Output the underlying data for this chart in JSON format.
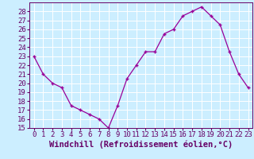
{
  "x": [
    0,
    1,
    2,
    3,
    4,
    5,
    6,
    7,
    8,
    9,
    10,
    11,
    12,
    13,
    14,
    15,
    16,
    17,
    18,
    19,
    20,
    21,
    22,
    23
  ],
  "y": [
    23,
    21,
    20,
    19.5,
    17.5,
    17,
    16.5,
    16,
    15,
    17.5,
    20.5,
    22,
    23.5,
    23.5,
    25.5,
    26,
    27.5,
    28,
    28.5,
    27.5,
    26.5,
    23.5,
    21,
    19.5
  ],
  "line_color": "#990099",
  "marker": "+",
  "bg_color": "#cceeff",
  "grid_color": "#ffffff",
  "xlabel": "Windchill (Refroidissement éolien,°C)",
  "ylabel": "",
  "xlim": [
    -0.5,
    23.5
  ],
  "ylim": [
    15,
    29
  ],
  "yticks": [
    15,
    16,
    17,
    18,
    19,
    20,
    21,
    22,
    23,
    24,
    25,
    26,
    27,
    28
  ],
  "xticks": [
    0,
    1,
    2,
    3,
    4,
    5,
    6,
    7,
    8,
    9,
    10,
    11,
    12,
    13,
    14,
    15,
    16,
    17,
    18,
    19,
    20,
    21,
    22,
    23
  ],
  "font_color": "#660066",
  "tick_fontsize": 6.5,
  "xlabel_fontsize": 7.5,
  "linewidth": 0.9,
  "markersize": 3.5
}
